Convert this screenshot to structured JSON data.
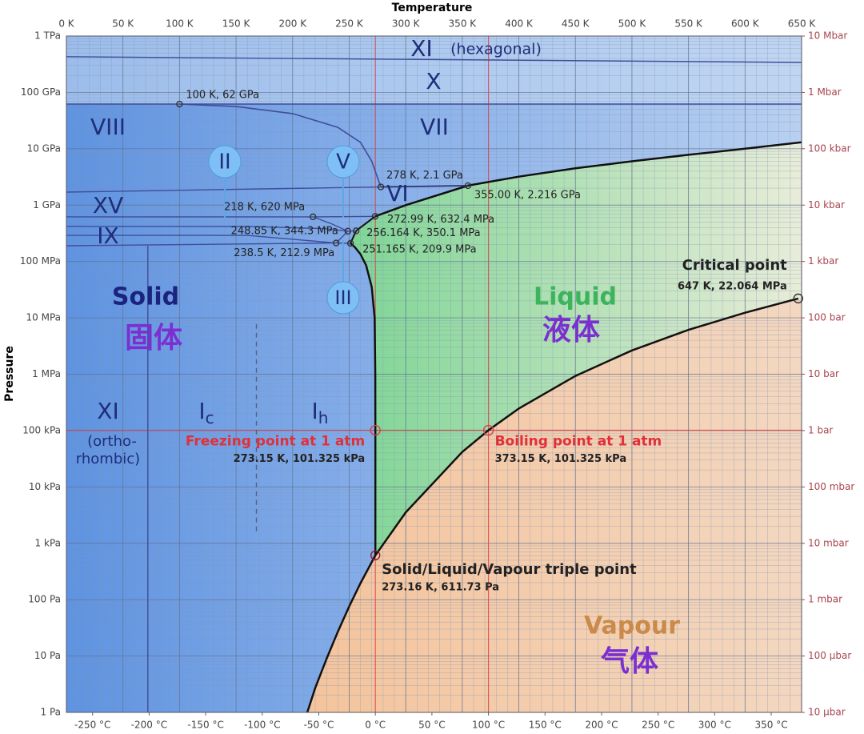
{
  "chart_data": {
    "type": "phase",
    "x_label": "Temperature",
    "y_label": "Pressure",
    "xlim": [
      0,
      650
    ],
    "xticks": [
      {
        "value": 0,
        "label": "0 K"
      },
      {
        "value": 50,
        "label": "50 K"
      },
      {
        "value": 100,
        "label": "100 K"
      },
      {
        "value": 150,
        "label": "150 K"
      },
      {
        "value": 200,
        "label": "200 K"
      },
      {
        "value": 250,
        "label": "250 K"
      },
      {
        "value": 300,
        "label": "300 K"
      },
      {
        "value": 350,
        "label": "350 K"
      },
      {
        "value": 400,
        "label": "400 K"
      },
      {
        "value": 450,
        "label": "450 K"
      },
      {
        "value": 500,
        "label": "500 K"
      },
      {
        "value": 550,
        "label": "550 K"
      },
      {
        "value": 600,
        "label": "600 K"
      },
      {
        "value": 650,
        "label": "650 K"
      }
    ],
    "x2lim": [
      -273.15,
      376.85
    ],
    "x2ticks": [
      {
        "value": -250,
        "label": "-250 °C"
      },
      {
        "value": -200,
        "label": "-200 °C"
      },
      {
        "value": -150,
        "label": "-150 °C"
      },
      {
        "value": -100,
        "label": "-100 °C"
      },
      {
        "value": -50,
        "label": "-50 °C"
      },
      {
        "value": 0,
        "label": "0 °C"
      },
      {
        "value": 50,
        "label": "50 °C"
      },
      {
        "value": 100,
        "label": "100 °C"
      },
      {
        "value": 150,
        "label": "150 °C"
      },
      {
        "value": 200,
        "label": "200 °C"
      },
      {
        "value": 250,
        "label": "250 °C"
      },
      {
        "value": 300,
        "label": "300 °C"
      },
      {
        "value": 350,
        "label": "350 °C"
      }
    ],
    "ylim": [
      1,
      1000000000000
    ],
    "log_y": true,
    "grid": true,
    "minor_grid": true,
    "yticks": [
      {
        "value": 1,
        "label": "1 Pa"
      },
      {
        "value": 10,
        "label": "10 Pa"
      },
      {
        "value": 100,
        "label": "100 Pa"
      },
      {
        "value": 1000,
        "label": "1 kPa"
      },
      {
        "value": 10000,
        "label": "10 kPa"
      },
      {
        "value": 100000,
        "label": "100 kPa"
      },
      {
        "value": 1000000,
        "label": "1 MPa"
      },
      {
        "value": 10000000,
        "label": "10 MPa"
      },
      {
        "value": 100000000,
        "label": "100 MPa"
      },
      {
        "value": 1000000000,
        "label": "1 GPa"
      },
      {
        "value": 10000000000,
        "label": "10 GPa"
      },
      {
        "value": 100000000000,
        "label": "100 GPa"
      },
      {
        "value": 1000000000000,
        "label": "1 TPa"
      }
    ],
    "y2lim": [
      1e-05,
      10000000
    ],
    "y2ticks": [
      {
        "value": 1e-05,
        "label": "10 µbar"
      },
      {
        "value": 0.0001,
        "label": "100 µbar"
      },
      {
        "value": 0.001,
        "label": "1 mbar"
      },
      {
        "value": 0.01,
        "label": "10 mbar"
      },
      {
        "value": 0.1,
        "label": "100 mbar"
      },
      {
        "value": 1,
        "label": "1 bar"
      },
      {
        "value": 10,
        "label": "10 bar"
      },
      {
        "value": 100,
        "label": "100 bar"
      },
      {
        "value": 1000,
        "label": "1 kbar"
      },
      {
        "value": 10000,
        "label": "10 kbar"
      },
      {
        "value": 100000,
        "label": "100 kbar"
      },
      {
        "value": 1000000,
        "label": "1 Mbar"
      },
      {
        "value": 10000000,
        "label": "10 Mbar"
      }
    ],
    "series": [
      {
        "x": [
          213,
          220,
          230,
          240,
          250,
          260,
          273.16
        ],
        "values": [
          1,
          2.7,
          8.9,
          27,
          76,
          196,
          611.73
        ],
        "color": "#111111",
        "width": 2.5
      },
      {
        "x": [
          273.16,
          300,
          350,
          373.15,
          400,
          450,
          500,
          550,
          600,
          647
        ],
        "values": [
          611.73,
          3537,
          41680,
          101325,
          245800,
          932000,
          2639000,
          6117000,
          12340000,
          22064000
        ],
        "color": "#111111",
        "width": 2.5
      },
      {
        "x": [
          273.16,
          273.15,
          273.1,
          272.5,
          270,
          265,
          260,
          255,
          251.165
        ],
        "values": [
          611.73,
          101325,
          1000000,
          10000000,
          35000000,
          85000000,
          135000000,
          180000000,
          209900000
        ],
        "color": "#111111",
        "width": 2.5
      },
      {
        "x": [
          251.165,
          256.164
        ],
        "values": [
          209900000,
          350100000
        ],
        "color": "#111111",
        "width": 2
      },
      {
        "x": [
          256.164,
          272.99
        ],
        "values": [
          350100000,
          632400000
        ],
        "color": "#111111",
        "width": 2
      },
      {
        "x": [
          272.99,
          300,
          355,
          400,
          450,
          500,
          550,
          600,
          650
        ],
        "values": [
          632400000,
          1000000000,
          2216000000,
          3200000000,
          4500000000,
          6000000000,
          7800000000,
          10000000000,
          13000000000
        ],
        "color": "#111111",
        "width": 2.5
      },
      {
        "x": [
          100,
          150,
          200,
          240,
          260,
          270,
          278
        ],
        "values": [
          62000000000,
          56000000000,
          42000000000,
          24000000000,
          13000000000,
          6000000000,
          2100000000
        ],
        "color": "#3f4d9c",
        "width": 1.6
      },
      {
        "x": [
          278,
          355
        ],
        "values": [
          2100000000,
          2216000000
        ],
        "color": "#2a3570",
        "width": 1.8
      },
      {
        "x": [
          0,
          278
        ],
        "values": [
          1700000000,
          2100000000
        ],
        "color": "#3f4d9c",
        "width": 1.4
      },
      {
        "x": [
          0,
          650
        ],
        "values": [
          62000000000,
          62000000000
        ],
        "color": "#3f4d9c",
        "width": 1.4
      },
      {
        "x": [
          0,
          650
        ],
        "values": [
          430000000000,
          340000000000
        ],
        "color": "#3f4d9c",
        "width": 1.4
      },
      {
        "x": [
          0,
          218
        ],
        "values": [
          620000000,
          620000000
        ],
        "color": "#3f4d9c",
        "width": 1.4
      },
      {
        "x": [
          0,
          160,
          230,
          248.85
        ],
        "values": [
          420000000,
          420000000,
          380000000,
          344300000
        ],
        "color": "#3f4d9c",
        "width": 1.4
      },
      {
        "x": [
          218,
          235,
          248.85
        ],
        "values": [
          620000000,
          460000000,
          344300000
        ],
        "color": "#3f4d9c",
        "width": 1.4
      },
      {
        "x": [
          248.85,
          256.164
        ],
        "values": [
          344300000,
          350100000
        ],
        "color": "#3f4d9c",
        "width": 1.4
      },
      {
        "x": [
          0,
          160,
          238.5
        ],
        "values": [
          290000000,
          290000000,
          212900000
        ],
        "color": "#3f4d9c",
        "width": 1.4
      },
      {
        "x": [
          0,
          238.5
        ],
        "values": [
          190000000,
          212900000
        ],
        "color": "#3f4d9c",
        "width": 1.4
      },
      {
        "x": [
          238.5,
          251.165
        ],
        "values": [
          212900000,
          209900000
        ],
        "color": "#3f4d9c",
        "width": 1.4
      },
      {
        "x": [
          238.5,
          248.85
        ],
        "values": [
          212900000,
          344300000
        ],
        "color": "#3f4d9c",
        "width": 1.4
      },
      {
        "x": [
          218,
          272.99
        ],
        "values": [
          620000000,
          632400000
        ],
        "color": "#3f4d9c",
        "width": 1.4
      },
      {
        "x": [
          72,
          72
        ],
        "values": [
          190000000,
          1
        ],
        "color": "#3f4d9c",
        "width": 1.4
      },
      {
        "x": [
          168,
          168
        ],
        "values": [
          7800000,
          1600
        ],
        "color": "#55607a",
        "width": 1.4,
        "dash": true
      }
    ],
    "points": [
      {
        "x": 100,
        "y": 62000000000,
        "label": "100 K, 62 GPa"
      },
      {
        "x": 278,
        "y": 2100000000,
        "label": "278 K, 2.1 GPa"
      },
      {
        "x": 355,
        "y": 2216000000,
        "label": "355.00 K, 2.216 GPa"
      },
      {
        "x": 218,
        "y": 620000000,
        "label": "218 K, 620 MPa"
      },
      {
        "x": 272.99,
        "y": 632400000,
        "label": "272.99 K, 632.4 MPa"
      },
      {
        "x": 248.85,
        "y": 344300000,
        "label": "248.85 K, 344.3 MPa"
      },
      {
        "x": 256.164,
        "y": 350100000,
        "label": "256.164 K, 350.1 MPa"
      },
      {
        "x": 238.5,
        "y": 212900000,
        "label": "238.5 K, 212.9 MPa"
      },
      {
        "x": 251.165,
        "y": 209900000,
        "label": "251.165 K, 209.9 MPa"
      },
      {
        "x": 647,
        "y": 22064000,
        "title": "Critical point",
        "label": "647 K, 22.064 MPa"
      },
      {
        "x": 273.15,
        "y": 101325,
        "title": "Freezing point at 1 atm",
        "label": "273.15 K, 101.325 kPa"
      },
      {
        "x": 373.15,
        "y": 101325,
        "title": "Boiling point at 1 atm",
        "label": "373.15 K, 101.325 kPa"
      },
      {
        "x": 273.16,
        "y": 611.73,
        "title": "Solid/Liquid/Vapour triple point",
        "label": "273.16 K, 611.73 Pa"
      }
    ],
    "region_labels": [
      "Solid",
      "固体",
      "Liquid",
      "液体",
      "Vapour",
      "气体"
    ],
    "phase_labels": [
      {
        "text": "XI"
      },
      {
        "text": "(hexagonal)"
      },
      {
        "text": "X"
      },
      {
        "text": "VIII"
      },
      {
        "text": "VII"
      },
      {
        "text": "II"
      },
      {
        "text": "V"
      },
      {
        "text": "VI"
      },
      {
        "text": "XV"
      },
      {
        "text": "IX"
      },
      {
        "text": "III"
      },
      {
        "text": "XI"
      },
      {
        "text": "(ortho-"
      },
      {
        "text": "rhombic)"
      },
      {
        "text": "I",
        "sub": "c"
      },
      {
        "text": "I",
        "sub": "h"
      }
    ]
  }
}
